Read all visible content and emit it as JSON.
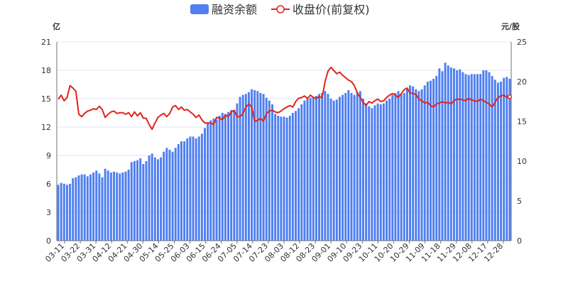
{
  "chart_data": {
    "type": "bar+line",
    "legend": [
      {
        "name": "融资余额",
        "type": "bar",
        "color": "#4f7ff0"
      },
      {
        "name": "收盘价(前复权)",
        "type": "line",
        "color": "#e0241b"
      }
    ],
    "legend_position": "top-center",
    "left_axis": {
      "unit": "亿",
      "min": 0,
      "max": 21,
      "ticks": [
        0,
        3,
        6,
        9,
        12,
        15,
        18,
        21
      ]
    },
    "right_axis": {
      "unit": "元/股",
      "min": 0,
      "max": 25,
      "ticks": [
        0,
        5,
        10,
        15,
        20,
        25
      ]
    },
    "x_labels": [
      "03-11",
      "03-22",
      "03-31",
      "04-12",
      "04-21",
      "04-30",
      "05-14",
      "05-25",
      "06-03",
      "06-15",
      "06-24",
      "07-05",
      "07-14",
      "07-23",
      "08-03",
      "08-12",
      "08-23",
      "09-01",
      "09-10",
      "09-23",
      "10-11",
      "10-20",
      "10-29",
      "11-09",
      "11-18",
      "11-29",
      "12-08",
      "12-17",
      "12-28"
    ],
    "grid": true,
    "series": [
      {
        "name": "融资余额",
        "unit": "亿",
        "values": [
          5.9,
          6.1,
          6.0,
          5.9,
          6.0,
          6.6,
          6.7,
          6.9,
          7.0,
          7.0,
          6.8,
          7.0,
          7.2,
          7.4,
          7.1,
          6.7,
          7.6,
          7.4,
          7.2,
          7.3,
          7.2,
          7.1,
          7.2,
          7.3,
          7.5,
          8.3,
          8.4,
          8.5,
          8.7,
          8.1,
          8.4,
          9.0,
          9.2,
          8.8,
          8.6,
          8.8,
          9.4,
          9.8,
          9.6,
          9.4,
          9.8,
          10.2,
          10.5,
          10.5,
          10.8,
          11.0,
          11.0,
          10.8,
          11.0,
          11.3,
          11.9,
          12.5,
          12.7,
          12.9,
          12.8,
          13.2,
          13.5,
          13.4,
          13.6,
          13.8,
          13.8,
          14.5,
          15.2,
          15.4,
          15.5,
          15.7,
          16.0,
          15.9,
          15.8,
          15.6,
          15.5,
          15.1,
          14.8,
          14.4,
          13.4,
          13.2,
          13.1,
          13.1,
          13.0,
          13.2,
          13.5,
          13.7,
          14.0,
          14.4,
          14.8,
          15.0,
          15.1,
          15.2,
          15.3,
          15.5,
          15.6,
          15.8,
          15.5,
          15.0,
          14.8,
          14.9,
          15.2,
          15.4,
          15.6,
          15.9,
          15.6,
          15.4,
          15.7,
          15.8,
          15.0,
          14.5,
          14.2,
          14.0,
          14.3,
          14.5,
          14.4,
          14.5,
          14.8,
          15.0,
          15.4,
          15.6,
          15.8,
          15.5,
          15.6,
          16.0,
          16.4,
          16.3,
          16.0,
          15.8,
          16.0,
          16.4,
          16.8,
          16.9,
          17.1,
          17.4,
          18.2,
          17.9,
          18.8,
          18.5,
          18.3,
          18.2,
          18.0,
          18.1,
          17.8,
          17.6,
          17.5,
          17.6,
          17.6,
          17.6,
          17.6,
          18.0,
          18.0,
          17.8,
          17.4,
          17.0,
          16.7,
          16.8,
          17.2,
          17.3,
          17.1
        ]
      },
      {
        "name": "收盘价(前复权)",
        "unit": "元/股",
        "values": [
          17.8,
          18.3,
          17.6,
          18.0,
          19.5,
          19.2,
          18.8,
          15.9,
          15.6,
          16.0,
          16.3,
          16.4,
          16.6,
          16.5,
          16.9,
          16.5,
          15.5,
          15.9,
          16.2,
          16.3,
          16.0,
          16.1,
          16.1,
          15.9,
          16.1,
          15.6,
          16.2,
          15.7,
          16.1,
          15.4,
          15.4,
          14.6,
          14.0,
          14.8,
          15.5,
          15.8,
          16.0,
          15.6,
          16.0,
          16.8,
          17.0,
          16.5,
          16.8,
          16.4,
          16.5,
          16.2,
          15.9,
          15.5,
          15.8,
          15.2,
          14.8,
          14.8,
          14.8,
          14.6,
          15.5,
          15.4,
          15.2,
          15.8,
          15.6,
          16.2,
          16.4,
          15.6,
          15.6,
          16.0,
          16.8,
          17.2,
          16.8,
          15.0,
          15.1,
          15.4,
          15.0,
          16.0,
          16.3,
          16.4,
          16.2,
          16.1,
          16.3,
          16.6,
          16.8,
          17.0,
          16.8,
          17.5,
          17.9,
          18.0,
          18.2,
          17.9,
          18.3,
          18.0,
          17.9,
          18.1,
          18.0,
          20.0,
          21.3,
          21.8,
          21.4,
          21.0,
          21.2,
          20.8,
          20.5,
          20.2,
          20.0,
          19.5,
          18.6,
          18.0,
          17.4,
          17.0,
          17.5,
          17.3,
          17.6,
          17.8,
          17.5,
          17.6,
          18.0,
          18.3,
          18.5,
          18.3,
          18.0,
          18.5,
          19.0,
          19.2,
          18.6,
          18.5,
          18.4,
          17.8,
          17.6,
          17.3,
          17.4,
          17.0,
          16.8,
          17.2,
          17.3,
          17.5,
          17.3,
          17.4,
          17.2,
          17.6,
          17.8,
          17.8,
          17.7,
          17.6,
          17.9,
          17.7,
          17.6,
          17.5,
          17.8,
          17.6,
          17.4,
          17.2,
          16.8,
          17.4,
          18.0,
          18.2,
          18.3,
          18.0,
          18.1
        ]
      }
    ]
  }
}
